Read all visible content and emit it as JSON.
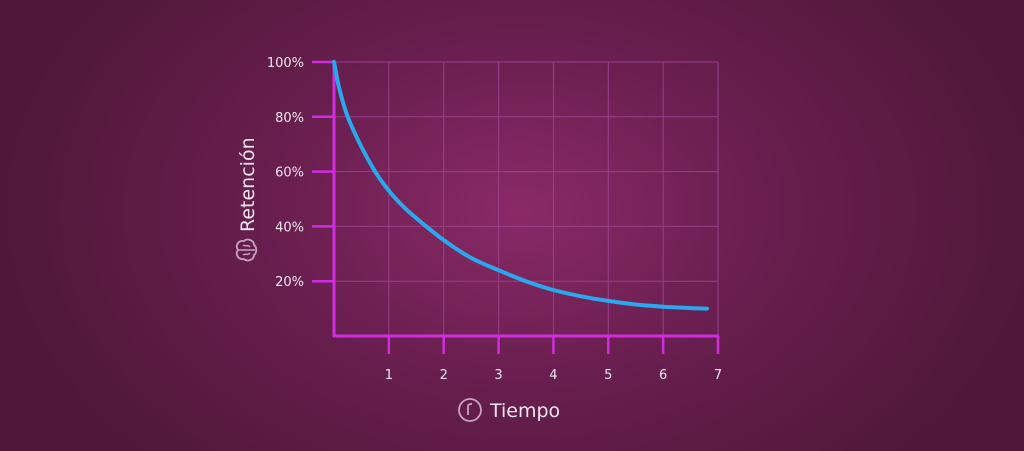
{
  "chart_data": {
    "type": "line",
    "title": "",
    "xlabel": "Tiempo",
    "ylabel": "Retención",
    "xlim": [
      0,
      7
    ],
    "ylim": [
      0,
      100
    ],
    "x_ticks": [
      "1",
      "2",
      "3",
      "4",
      "5",
      "6",
      "7"
    ],
    "y_ticks": [
      "20%",
      "40%",
      "60%",
      "80%",
      "100%"
    ],
    "grid": true,
    "legend": "none",
    "series": [
      {
        "x": [
          0,
          0.1,
          0.25,
          0.5,
          0.75,
          1,
          1.25,
          1.5,
          2,
          2.5,
          3,
          3.5,
          4,
          4.5,
          5,
          5.5,
          6,
          6.5,
          6.8
        ],
        "y": [
          100,
          90,
          80,
          69,
          60,
          53,
          47.5,
          43,
          35,
          28.5,
          24,
          20,
          16.8,
          14.5,
          12.8,
          11.5,
          10.7,
          10.2,
          10
        ]
      }
    ],
    "colors": {
      "axis": "#d02de0",
      "grid": "#9a3f8c",
      "line": "#29a8ee",
      "text": "#f3e6f0",
      "icon": "#c9a3bf"
    },
    "icons": {
      "ylabel_icon": "brain-icon",
      "xlabel_icon": "clock-icon"
    }
  }
}
